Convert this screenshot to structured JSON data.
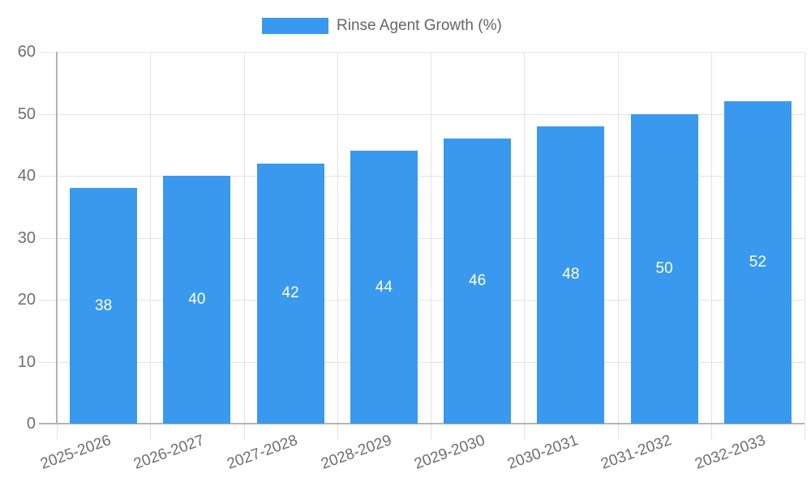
{
  "legend": {
    "label": "Rinse Agent Growth (%)"
  },
  "chart_data": {
    "type": "bar",
    "title": "",
    "categories": [
      "2025-2026",
      "2026-2027",
      "2027-2028",
      "2028-2029",
      "2029-2030",
      "2030-2031",
      "2031-2032",
      "2032-2033"
    ],
    "series": [
      {
        "name": "Rinse Agent Growth (%)",
        "values": [
          38,
          40,
          42,
          44,
          46,
          48,
          50,
          52
        ]
      }
    ],
    "bar_value_labels": [
      38,
      40,
      42,
      44,
      46,
      48,
      50,
      52
    ],
    "xlabel": "",
    "ylabel": "",
    "ylim": [
      0,
      60
    ],
    "yticks": [
      0,
      10,
      20,
      30,
      40,
      50,
      60
    ],
    "grid": "on",
    "legend_position": "top-center",
    "colors": {
      "bar": "#3999ee",
      "bar_label_text": "#ffffff",
      "grid_line": "#e3e3e3",
      "axis_line": "#b3b3b3",
      "tick_text": "#6f6f6f",
      "legend_text": "#666666",
      "background": "#ffffff"
    }
  }
}
